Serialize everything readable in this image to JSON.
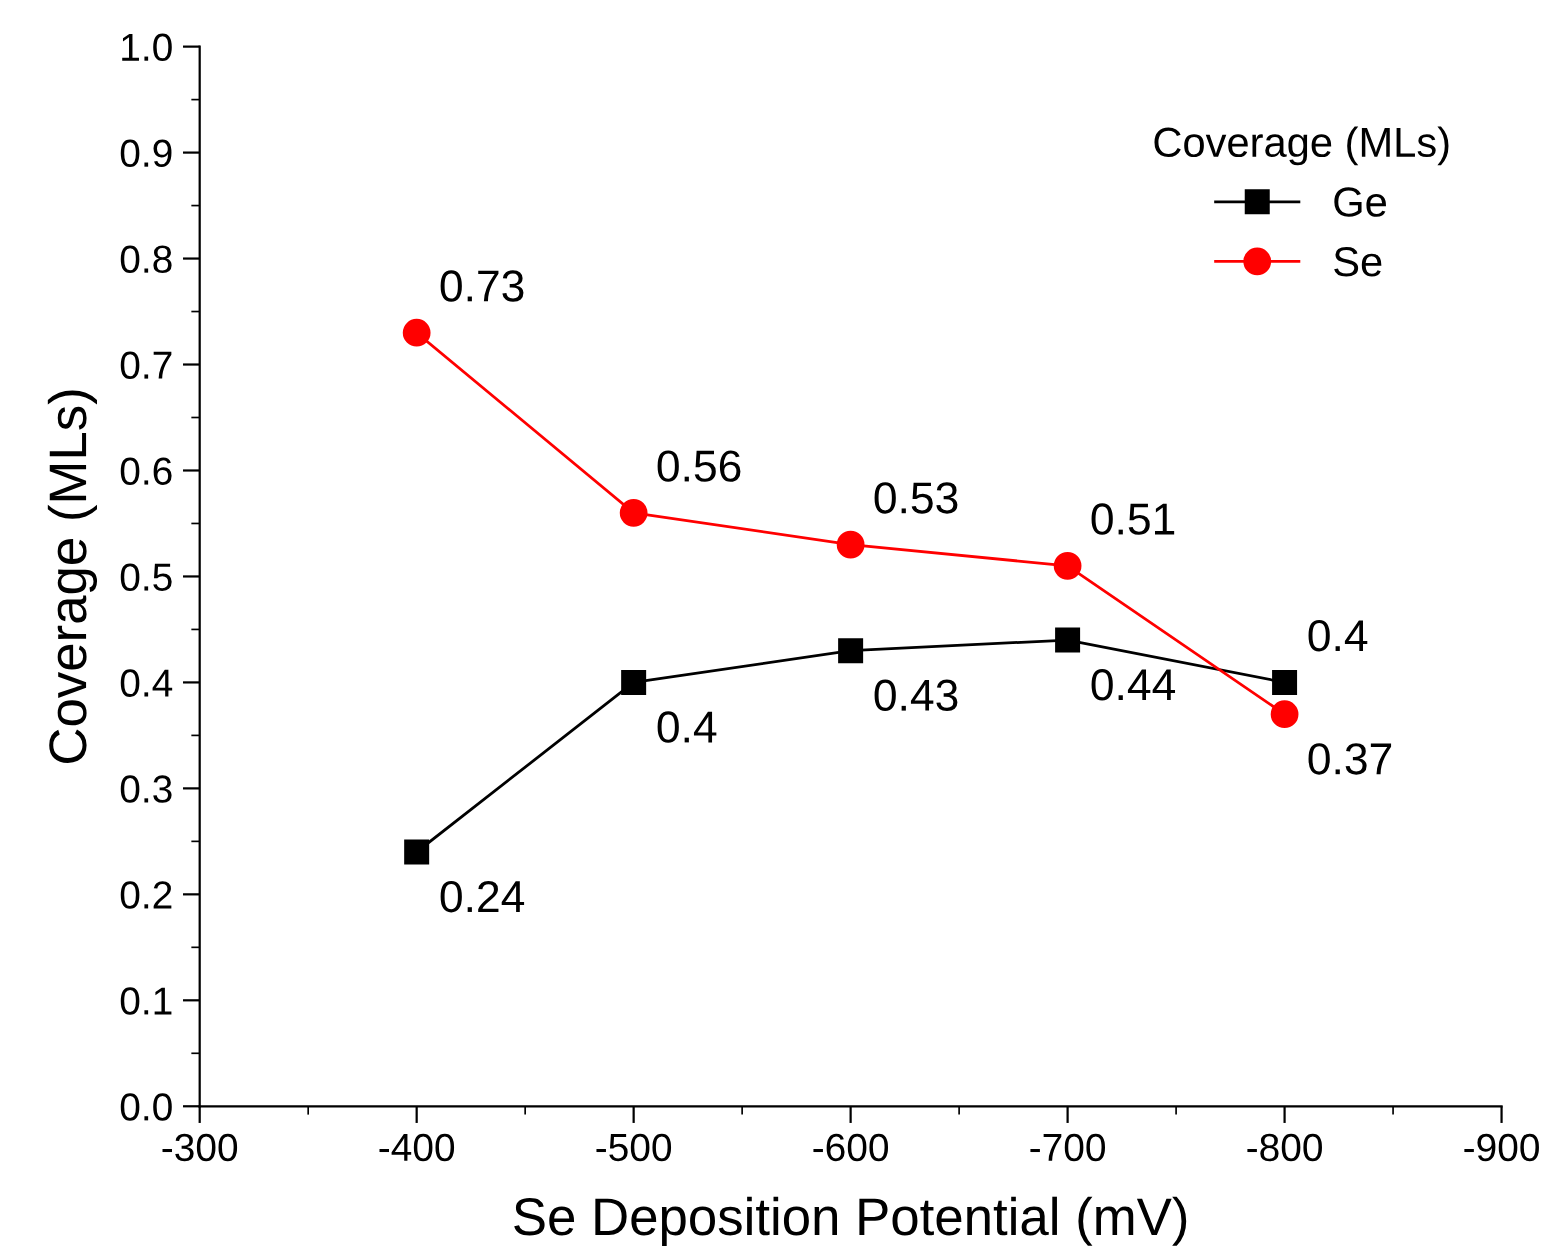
{
  "chart_data": {
    "type": "line",
    "xlabel": "Se Deposition Potential (mV)",
    "ylabel": "Coverage (MLs)",
    "legend_title": "Coverage (MLs)",
    "x": [
      -400,
      -500,
      -600,
      -700,
      -800
    ],
    "series": [
      {
        "name": "Ge",
        "color": "#000000",
        "marker": "square",
        "values": [
          0.24,
          0.4,
          0.43,
          0.44,
          0.4
        ]
      },
      {
        "name": "Se",
        "color": "#ff0000",
        "marker": "circle",
        "values": [
          0.73,
          0.56,
          0.53,
          0.51,
          0.37
        ]
      }
    ],
    "xlim": [
      -300,
      -900
    ],
    "xticks": [
      {
        "value": -300,
        "label": "-300"
      },
      {
        "value": -400,
        "label": "-400"
      },
      {
        "value": -500,
        "label": "-500"
      },
      {
        "value": -600,
        "label": "-600"
      },
      {
        "value": -700,
        "label": "-700"
      },
      {
        "value": -800,
        "label": "-800"
      },
      {
        "value": -900,
        "label": "-900"
      }
    ],
    "ylim": [
      0,
      1
    ],
    "yticks": [
      {
        "value": 0,
        "label": "0.0"
      },
      0.1,
      0.2,
      0.3,
      0.4,
      0.5,
      0.6,
      0.7,
      0.8,
      0.9,
      {
        "value": 1,
        "label": "1.0"
      }
    ],
    "data_labels": true,
    "legend": "top right",
    "grid": false,
    "line_style": "solid"
  }
}
